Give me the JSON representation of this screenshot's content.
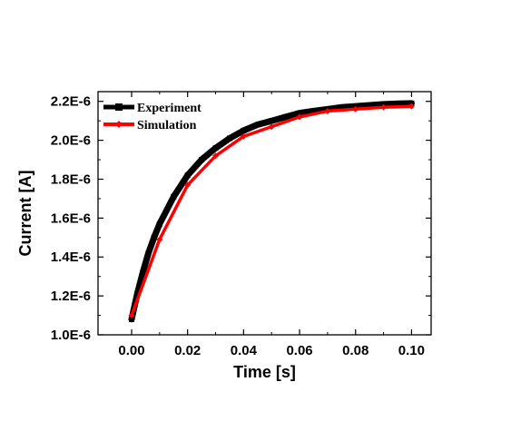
{
  "chart_data": {
    "type": "line",
    "xlabel": "Time [s]",
    "ylabel": "Current [A]",
    "xlim": [
      -0.012,
      0.107
    ],
    "ylim": [
      1e-06,
      2.25e-06
    ],
    "x_ticks": [
      0.0,
      0.02,
      0.04,
      0.06,
      0.08,
      0.1
    ],
    "x_tick_labels": [
      "0.00",
      "0.02",
      "0.04",
      "0.06",
      "0.08",
      "0.10"
    ],
    "y_ticks": [
      1e-06,
      1.2e-06,
      1.4e-06,
      1.6e-06,
      1.8e-06,
      2e-06,
      2.2e-06
    ],
    "y_tick_labels": [
      "1.0E-6",
      "1.2E-6",
      "1.4E-6",
      "1.6E-6",
      "1.8E-6",
      "2.0E-6",
      "2.2E-6"
    ],
    "grid": false,
    "legend_position": "top-left",
    "series": [
      {
        "name": "Experiment",
        "color": "#000000",
        "marker": "square",
        "x": [
          0.0,
          0.002,
          0.004,
          0.006,
          0.008,
          0.01,
          0.015,
          0.02,
          0.025,
          0.03,
          0.035,
          0.04,
          0.045,
          0.05,
          0.055,
          0.06,
          0.065,
          0.07,
          0.075,
          0.08,
          0.085,
          0.09,
          0.095,
          0.1
        ],
        "y": [
          1.08e-06,
          1.21e-06,
          1.32e-06,
          1.42e-06,
          1.5e-06,
          1.57e-06,
          1.71e-06,
          1.82e-06,
          1.9e-06,
          1.96e-06,
          2.01e-06,
          2.05e-06,
          2.08e-06,
          2.1e-06,
          2.12e-06,
          2.14e-06,
          2.15e-06,
          2.16e-06,
          2.17e-06,
          2.175e-06,
          2.18e-06,
          2.185e-06,
          2.188e-06,
          2.19e-06
        ]
      },
      {
        "name": "Simulation",
        "color": "#ff0000",
        "marker": "diamond",
        "x": [
          0.0,
          0.01,
          0.02,
          0.03,
          0.04,
          0.05,
          0.06,
          0.07,
          0.08,
          0.09,
          0.1
        ],
        "y": [
          1.1e-06,
          1.49e-06,
          1.77e-06,
          1.92e-06,
          2.02e-06,
          2.07e-06,
          2.12e-06,
          2.15e-06,
          2.16e-06,
          2.17e-06,
          2.175e-06
        ]
      }
    ]
  }
}
